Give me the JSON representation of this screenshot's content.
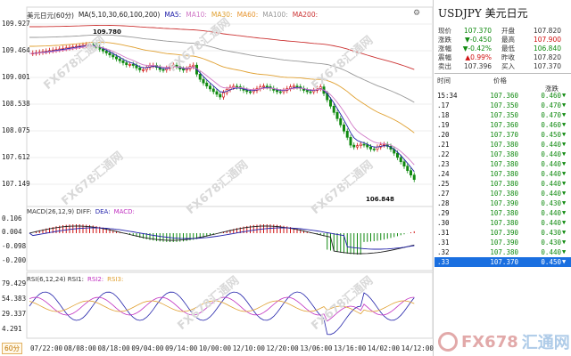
{
  "chart": {
    "title": "美元日元(60分)",
    "ma_label": "MA(5,10,30,60,100,200)",
    "ma5": "MA5:",
    "ma10": "MA10:",
    "ma30": "MA30:",
    "ma60": "MA60:",
    "ma100": "MA100:",
    "ma200": "MA200:",
    "high_marker": "109.780",
    "low_marker": "106.848",
    "y_labels": [
      "109.927",
      "109.464",
      "109.001",
      "108.538",
      "108.075",
      "107.612",
      "107.149"
    ],
    "x_labels": [
      "07/22:00",
      "08/08:00",
      "08/18:00",
      "09/04:00",
      "09/14:00",
      "10/00:00",
      "12/10:00",
      "12/20:00",
      "13/06:00",
      "13/16:00",
      "14/02:00",
      "14/12:00"
    ],
    "period": "60分",
    "watermark": "FX678汇通网"
  },
  "macd": {
    "label": "MACD(26,12,9) DIFF:",
    "dea": "DEA:",
    "macd": "MACD:",
    "y_labels": [
      "0.106",
      "0.004",
      "-0.098",
      "-0.200"
    ]
  },
  "rsi": {
    "label": "RSI(6,12,24) RSI1:",
    "rsi2": "RSI2:",
    "rsi3": "RSI3:",
    "y_labels": [
      "79.429",
      "54.383",
      "29.337",
      "4.291"
    ]
  },
  "quote": {
    "title": "USDJPY 美元日元",
    "rows": [
      {
        "k": "现价",
        "v": "107.370",
        "vc": "green",
        "k2": "开盘",
        "v2": "107.820",
        "v2c": ""
      },
      {
        "k": "涨跌",
        "v": "▼-0.450",
        "vc": "green",
        "k2": "最高",
        "v2": "107.900",
        "v2c": "red"
      },
      {
        "k": "涨幅",
        "v": "▼-0.42%",
        "vc": "green",
        "k2": "最低",
        "v2": "106.840",
        "v2c": "green"
      },
      {
        "k": "震幅",
        "v": "▲0.99%",
        "vc": "red",
        "k2": "昨收",
        "v2": "107.820",
        "v2c": ""
      },
      {
        "k": "卖出",
        "v": "107.396",
        "vc": "",
        "k2": "买入",
        "v2": "107.370",
        "v2c": ""
      }
    ],
    "col_time": "时间",
    "col_price": "价格",
    "col_change": "涨跌"
  },
  "ticks": [
    {
      "t": "15:34",
      "p": "107.360",
      "c": "0.460",
      "a": "▼"
    },
    {
      "t": ".17",
      "p": "107.350",
      "c": "0.470",
      "a": "▼"
    },
    {
      "t": ".18",
      "p": "107.350",
      "c": "0.470",
      "a": "▼"
    },
    {
      "t": ".19",
      "p": "107.360",
      "c": "0.460",
      "a": "▼"
    },
    {
      "t": ".20",
      "p": "107.370",
      "c": "0.450",
      "a": "▼"
    },
    {
      "t": ".21",
      "p": "107.380",
      "c": "0.440",
      "a": "▼"
    },
    {
      "t": ".22",
      "p": "107.380",
      "c": "0.440",
      "a": "▼"
    },
    {
      "t": ".23",
      "p": "107.380",
      "c": "0.440",
      "a": "▼"
    },
    {
      "t": ".24",
      "p": "107.380",
      "c": "0.440",
      "a": "▼"
    },
    {
      "t": ".25",
      "p": "107.380",
      "c": "0.440",
      "a": "▼"
    },
    {
      "t": ".27",
      "p": "107.380",
      "c": "0.440",
      "a": "▼"
    },
    {
      "t": ".28",
      "p": "107.390",
      "c": "0.430",
      "a": "▼"
    },
    {
      "t": ".29",
      "p": "107.380",
      "c": "0.440",
      "a": "▼"
    },
    {
      "t": ".30",
      "p": "107.380",
      "c": "0.440",
      "a": "▼"
    },
    {
      "t": ".31",
      "p": "107.390",
      "c": "0.430",
      "a": "▼"
    },
    {
      "t": ".31",
      "p": "107.390",
      "c": "0.430",
      "a": "▼"
    },
    {
      "t": ".32",
      "p": "107.380",
      "c": "0.440",
      "a": "▼"
    },
    {
      "t": ".33",
      "p": "107.370",
      "c": "0.450",
      "a": "▼"
    }
  ],
  "logo": {
    "fx": "FX678",
    "cn": "汇通网"
  },
  "colors": {
    "up": "#d01010",
    "down": "#108a10",
    "selected": "#1a6fe0"
  }
}
